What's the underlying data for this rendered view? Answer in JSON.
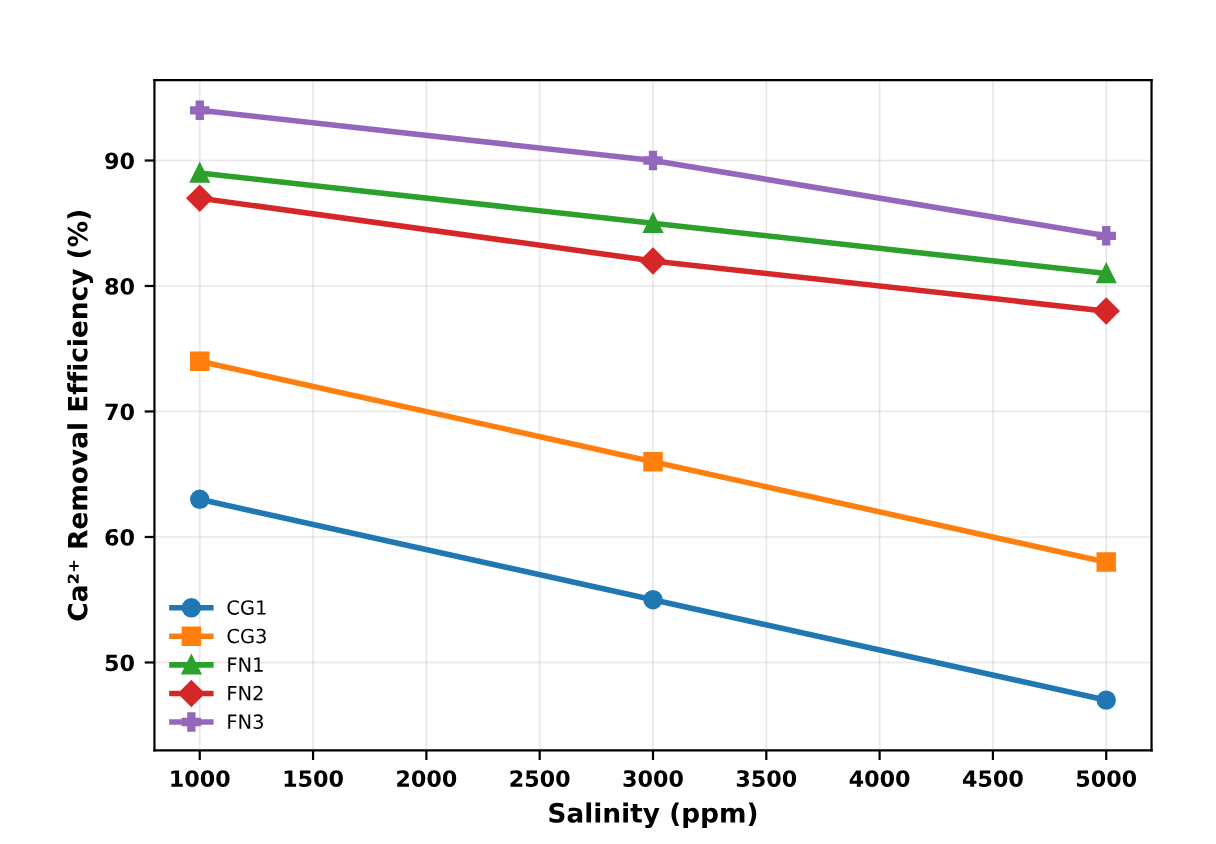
{
  "chart_data": {
    "type": "line",
    "xlabel": "Salinity (ppm)",
    "ylabel": "Ca²⁺ Removal Efficiency (%)",
    "x": [
      1000,
      3000,
      5000
    ],
    "series": [
      {
        "name": "CG1",
        "color": "#1f77b4",
        "marker": "circle",
        "values": [
          63,
          55,
          47
        ]
      },
      {
        "name": "CG3",
        "color": "#ff7f0e",
        "marker": "square",
        "values": [
          74,
          66,
          58
        ]
      },
      {
        "name": "FN1",
        "color": "#2ca02c",
        "marker": "triangle",
        "values": [
          89,
          85,
          81
        ]
      },
      {
        "name": "FN2",
        "color": "#d62728",
        "marker": "diamond",
        "values": [
          87,
          82,
          78
        ]
      },
      {
        "name": "FN3",
        "color": "#9467bd",
        "marker": "cross",
        "values": [
          94,
          90,
          84
        ]
      }
    ],
    "xlim": [
      800,
      5200
    ],
    "xticks": [
      1000,
      1500,
      2000,
      2500,
      3000,
      3500,
      4000,
      4500,
      5000
    ],
    "ylim": [
      43,
      96.4
    ],
    "yticks": [
      50,
      60,
      70,
      80,
      90
    ],
    "grid": true,
    "legend": "bottom left",
    "line_style": "solid"
  }
}
